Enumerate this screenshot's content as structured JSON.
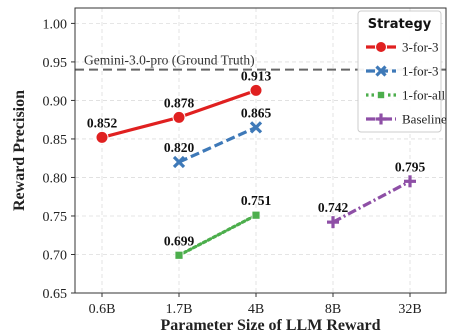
{
  "chart_data": {
    "type": "line",
    "xlabel": "Parameter Size of LLM Reward",
    "ylabel": "Reward Precision",
    "categories": [
      "0.6B",
      "1.7B",
      "4B",
      "8B",
      "32B"
    ],
    "ylim": [
      0.65,
      1.02
    ],
    "yticks": [
      0.65,
      0.7,
      0.75,
      0.8,
      0.85,
      0.9,
      0.95,
      1.0
    ],
    "ytick_labels": [
      "0.65",
      "0.70",
      "0.75",
      "0.80",
      "0.85",
      "0.90",
      "0.95",
      "1.00"
    ],
    "grid": true,
    "reference_line": {
      "label": "Gemini-3.0-pro (Ground Truth)",
      "value": 0.94,
      "color": "#666666"
    },
    "legend": {
      "title": "Strategy",
      "position": "top-right"
    },
    "series": [
      {
        "name": "3-for-3",
        "color": "#e02020",
        "line": "solid",
        "marker": "circle",
        "x": [
          "0.6B",
          "1.7B",
          "4B"
        ],
        "values": [
          0.852,
          0.878,
          0.913
        ],
        "labels": [
          "0.852",
          "0.878",
          "0.913"
        ]
      },
      {
        "name": "1-for-3",
        "color": "#3e79b8",
        "line": "dashed",
        "marker": "x",
        "x": [
          "1.7B",
          "4B"
        ],
        "values": [
          0.82,
          0.865
        ],
        "labels": [
          "0.820",
          "0.865"
        ]
      },
      {
        "name": "1-for-all",
        "color": "#4cae4c",
        "line": "dotted",
        "marker": "square",
        "x": [
          "1.7B",
          "4B"
        ],
        "values": [
          0.699,
          0.751
        ],
        "labels": [
          "0.699",
          "0.751"
        ]
      },
      {
        "name": "Baseline",
        "color": "#8e4fa6",
        "line": "dashdot",
        "marker": "plus",
        "x": [
          "8B",
          "32B"
        ],
        "values": [
          0.742,
          0.795
        ],
        "labels": [
          "0.742",
          "0.795"
        ]
      }
    ]
  }
}
